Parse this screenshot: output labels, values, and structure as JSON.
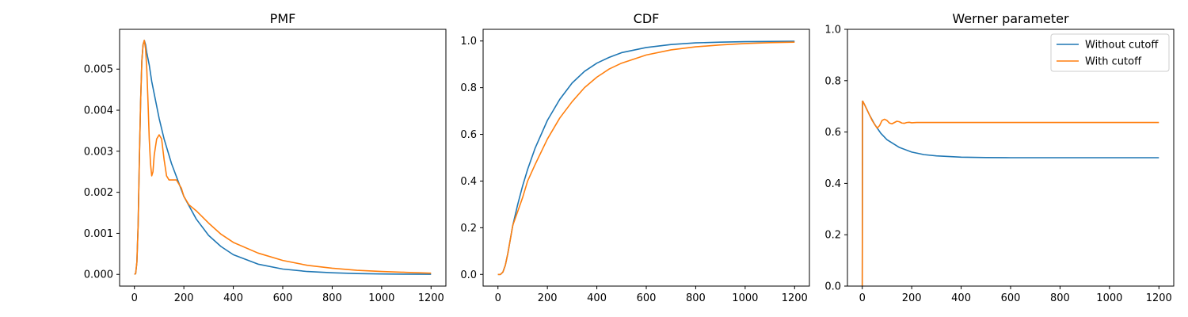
{
  "colors": {
    "blue": "#1f77b4",
    "orange": "#ff7f0e"
  },
  "chart_data": [
    {
      "type": "line",
      "title": "PMF",
      "xlabel": "",
      "ylabel": "",
      "xlim": [
        -60,
        1260
      ],
      "ylim": [
        -0.000285,
        0.00597
      ],
      "xticks": [
        0,
        200,
        400,
        600,
        800,
        1000,
        1200
      ],
      "yticks": [
        0.0,
        0.001,
        0.002,
        0.003,
        0.004,
        0.005
      ],
      "ytick_labels": [
        "0.000",
        "0.001",
        "0.002",
        "0.003",
        "0.004",
        "0.005"
      ],
      "grid": false,
      "series": [
        {
          "color": "#1f77b4",
          "x": [
            0,
            5,
            10,
            15,
            20,
            25,
            30,
            35,
            40,
            45,
            50,
            60,
            70,
            80,
            100,
            120,
            150,
            200,
            250,
            300,
            350,
            400,
            500,
            600,
            700,
            800,
            900,
            1000,
            1100,
            1200
          ],
          "y": [
            0,
            2e-05,
            0.0003,
            0.0012,
            0.0028,
            0.0042,
            0.0052,
            0.0056,
            0.0057,
            0.0056,
            0.0054,
            0.0051,
            0.0047,
            0.0044,
            0.0038,
            0.0033,
            0.0027,
            0.0019,
            0.00135,
            0.00095,
            0.00068,
            0.00048,
            0.00025,
            0.00013,
            7e-05,
            4e-05,
            2e-05,
            1e-05,
            5e-06,
            3e-06
          ]
        },
        {
          "color": "#ff7f0e",
          "x": [
            0,
            5,
            10,
            15,
            20,
            25,
            30,
            35,
            40,
            45,
            50,
            55,
            60,
            65,
            70,
            75,
            80,
            90,
            100,
            110,
            120,
            130,
            140,
            150,
            160,
            170,
            180,
            190,
            200,
            220,
            250,
            300,
            350,
            400,
            500,
            600,
            700,
            800,
            900,
            1000,
            1100,
            1200
          ],
          "y": [
            0,
            2e-05,
            0.0003,
            0.0012,
            0.0028,
            0.0042,
            0.0052,
            0.0056,
            0.0057,
            0.0055,
            0.005,
            0.0042,
            0.0033,
            0.0027,
            0.0024,
            0.0025,
            0.0029,
            0.0033,
            0.0034,
            0.0033,
            0.0028,
            0.0024,
            0.0023,
            0.0023,
            0.0023,
            0.0023,
            0.0022,
            0.0021,
            0.0019,
            0.0017,
            0.00155,
            0.00125,
            0.00098,
            0.00078,
            0.00052,
            0.00034,
            0.00022,
            0.00015,
            0.0001,
            7e-05,
            5e-05,
            3e-05
          ]
        }
      ]
    },
    {
      "type": "line",
      "title": "CDF",
      "xlabel": "",
      "ylabel": "",
      "xlim": [
        -60,
        1260
      ],
      "ylim": [
        -0.05,
        1.05
      ],
      "xticks": [
        0,
        200,
        400,
        600,
        800,
        1000,
        1200
      ],
      "yticks": [
        0.0,
        0.2,
        0.4,
        0.6,
        0.8,
        1.0
      ],
      "ytick_labels": [
        "0.0",
        "0.2",
        "0.4",
        "0.6",
        "0.8",
        "1.0"
      ],
      "grid": false,
      "series": [
        {
          "color": "#1f77b4",
          "x": [
            0,
            10,
            20,
            30,
            40,
            50,
            60,
            80,
            100,
            120,
            150,
            200,
            250,
            300,
            350,
            400,
            450,
            500,
            600,
            700,
            800,
            900,
            1000,
            1100,
            1200
          ],
          "y": [
            0,
            0,
            0.01,
            0.04,
            0.09,
            0.15,
            0.21,
            0.3,
            0.38,
            0.45,
            0.54,
            0.66,
            0.75,
            0.82,
            0.87,
            0.905,
            0.93,
            0.95,
            0.972,
            0.985,
            0.992,
            0.995,
            0.997,
            0.998,
            0.999
          ]
        },
        {
          "color": "#ff7f0e",
          "x": [
            0,
            10,
            20,
            30,
            40,
            50,
            60,
            80,
            100,
            120,
            150,
            200,
            250,
            300,
            350,
            400,
            450,
            500,
            600,
            700,
            800,
            900,
            1000,
            1100,
            1200
          ],
          "y": [
            0,
            0,
            0.01,
            0.04,
            0.09,
            0.15,
            0.21,
            0.27,
            0.33,
            0.4,
            0.47,
            0.58,
            0.67,
            0.74,
            0.8,
            0.845,
            0.88,
            0.905,
            0.94,
            0.962,
            0.975,
            0.983,
            0.989,
            0.993,
            0.995
          ]
        }
      ]
    },
    {
      "type": "line",
      "title": "Werner parameter",
      "xlabel": "",
      "ylabel": "",
      "xlim": [
        -60,
        1260
      ],
      "ylim": [
        0,
        1.0
      ],
      "xticks": [
        0,
        200,
        400,
        600,
        800,
        1000,
        1200
      ],
      "yticks": [
        0.0,
        0.2,
        0.4,
        0.6,
        0.8,
        1.0
      ],
      "ytick_labels": [
        "0.0",
        "0.2",
        "0.4",
        "0.6",
        "0.8",
        "1.0"
      ],
      "grid": false,
      "legend": {
        "position": "upper right",
        "entries": [
          {
            "label": "Without cutoff",
            "color": "#1f77b4"
          },
          {
            "label": "With cutoff",
            "color": "#ff7f0e"
          }
        ]
      },
      "series": [
        {
          "name": "Without cutoff",
          "color": "#1f77b4",
          "x": [
            0,
            1,
            2,
            10,
            20,
            30,
            50,
            75,
            100,
            150,
            200,
            250,
            300,
            400,
            500,
            600,
            800,
            1000,
            1200
          ],
          "y": [
            0,
            0.72,
            0.72,
            0.705,
            0.685,
            0.665,
            0.63,
            0.595,
            0.57,
            0.54,
            0.522,
            0.512,
            0.507,
            0.502,
            0.5005,
            0.5,
            0.5,
            0.5,
            0.5
          ]
        },
        {
          "name": "With cutoff",
          "color": "#ff7f0e",
          "x": [
            0,
            1,
            2,
            10,
            20,
            30,
            40,
            50,
            60,
            70,
            80,
            90,
            100,
            110,
            120,
            130,
            140,
            150,
            160,
            170,
            180,
            190,
            200,
            220,
            250,
            300,
            400,
            600,
            800,
            1000,
            1200
          ],
          "y": [
            0,
            0.72,
            0.72,
            0.705,
            0.685,
            0.665,
            0.645,
            0.63,
            0.615,
            0.625,
            0.645,
            0.65,
            0.645,
            0.635,
            0.632,
            0.637,
            0.642,
            0.64,
            0.635,
            0.634,
            0.637,
            0.638,
            0.636,
            0.637,
            0.637,
            0.637,
            0.637,
            0.637,
            0.637,
            0.637,
            0.637
          ]
        }
      ]
    }
  ]
}
